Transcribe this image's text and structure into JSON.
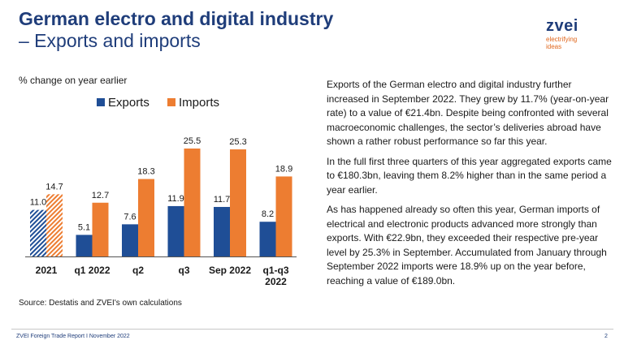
{
  "header": {
    "title_line1": "German electro and digital industry",
    "title_line2": "– Exports and imports"
  },
  "logo": {
    "word": "zvei",
    "tagline_line1": "electrifying",
    "tagline_line2": "ideas"
  },
  "chart_subtitle": "% change on year earlier",
  "source": "Source: Destatis and ZVEI's own calculations",
  "text": {
    "p1": "Exports of the German electro and digital industry further increased in September 2022. They grew by 11.7% (year-on-year rate) to a value of €21.4bn. Despite being confronted with several macroeconomic challenges, the sector’s deliveries abroad have shown a rather robust performance so far this year.",
    "p2": "In the full first three quarters of this year aggregated exports came to €180.3bn, leaving them 8.2% higher than in the same period a year earlier.",
    "p3": "As has happened already so often this year, German imports of electrical and electronic products advanced more strongly than exports. With €22.9bn, they exceeded their respective pre-year level by 25.3% in September. Accumulated from January through September 2022 imports were 18.9% up on the year before, reaching a value of €189.0bn."
  },
  "footer": {
    "left": "ZVEI Foreign Trade Report I November 2022",
    "page": "2"
  },
  "colors": {
    "exports": "#1f4e96",
    "imports": "#ed7d31",
    "title": "#1f3d7a"
  },
  "chart_data": {
    "type": "bar",
    "categories": [
      "2021",
      "q1 2022",
      "q2",
      "q3",
      "Sep 2022",
      "q1-q3\n2022"
    ],
    "series": [
      {
        "name": "Exports",
        "values": [
          11.0,
          5.1,
          7.6,
          11.9,
          11.7,
          8.2
        ]
      },
      {
        "name": "Imports",
        "values": [
          14.7,
          12.7,
          18.3,
          25.5,
          25.3,
          18.9
        ]
      }
    ],
    "hatched_categories": [
      "2021"
    ],
    "value_labels": {
      "Exports": [
        "11.0",
        "5.1",
        "7.6",
        "11.9",
        "11.7",
        "8.2"
      ],
      "Imports": [
        "14.7",
        "12.7",
        "18.3",
        "25.5",
        "25.3",
        "18.9"
      ]
    },
    "ylim": [
      0,
      30
    ],
    "legend_position": "top-center",
    "grid": false
  }
}
